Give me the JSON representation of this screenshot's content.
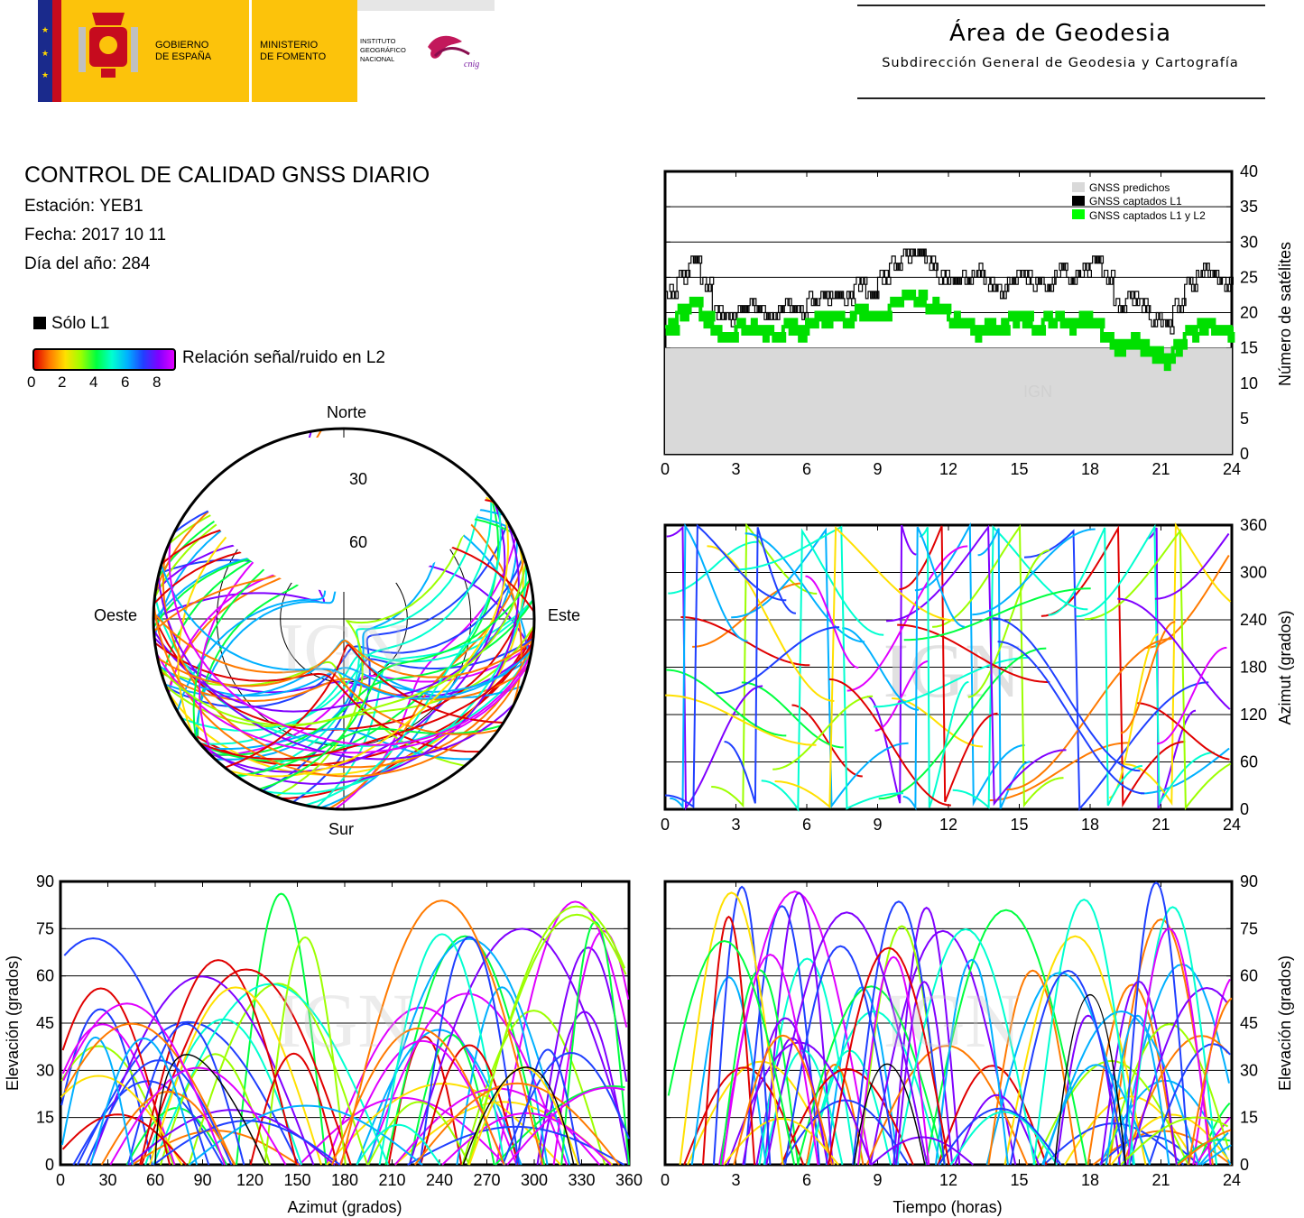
{
  "header": {
    "gov1": "GOBIERNO",
    "gov2": "DE ESPAÑA",
    "min1": "MINISTERIO",
    "min2": "DE FOMENTO",
    "ign1": "INSTITUTO",
    "ign2": "GEOGRÁFICO",
    "ign3": "NACIONAL",
    "cnig": "cnig",
    "area_title": "Área de Geodesia",
    "area_subtitle": "Subdirección General de Geodesia y Cartografía"
  },
  "report": {
    "title": "CONTROL DE CALIDAD GNSS DIARIO",
    "station": "Estación: YEB1",
    "date": "Fecha: 2017 10 11",
    "doy": "Día del año: 284"
  },
  "legend": {
    "solo_l1": "Sólo L1",
    "snr_label": "Relación señal/ruido en L2",
    "snr_ticks": [
      "0",
      "2",
      "4",
      "6",
      "8"
    ]
  },
  "watermark": "IGN",
  "colors": {
    "predicted": "#d9d9d9",
    "l1": "#000000",
    "l1l2": "#00ff00",
    "snr_scale": [
      "#e00000",
      "#ff7a00",
      "#ffe000",
      "#9cff00",
      "#00ff40",
      "#00ffd0",
      "#00b0ff",
      "#2040ff",
      "#8000ff",
      "#e000ff"
    ]
  },
  "chart_data": [
    {
      "type": "area",
      "id": "satellites",
      "ylabel": "Número de satélites",
      "xlim": [
        0,
        24
      ],
      "ylim": [
        0,
        40
      ],
      "x_ticks": [
        "0",
        "3",
        "6",
        "9",
        "12",
        "15",
        "18",
        "21",
        "24"
      ],
      "y_ticks": [
        "0",
        "5",
        "10",
        "15",
        "20",
        "25",
        "30",
        "35",
        "40"
      ],
      "grid": true,
      "legend_position": "top-right",
      "legend": [
        "GNSS predichos",
        "GNSS captados L1",
        "GNSS captados L1 y L2"
      ],
      "x": [
        0,
        0.5,
        1,
        1.5,
        2,
        2.5,
        3,
        3.5,
        4,
        4.5,
        5,
        5.5,
        6,
        6.5,
        7,
        7.5,
        8,
        8.5,
        9,
        9.5,
        10,
        10.5,
        11,
        11.5,
        12,
        12.5,
        13,
        13.5,
        14,
        14.5,
        15,
        15.5,
        16,
        16.5,
        17,
        17.5,
        18,
        18.5,
        19,
        19.5,
        20,
        20.5,
        21,
        21.5,
        22,
        22.5,
        23,
        23.5,
        24
      ],
      "series": [
        {
          "name": "GNSS predichos",
          "values": [
            15,
            15,
            15,
            15,
            15,
            15,
            15,
            15,
            15,
            15,
            15,
            15,
            15,
            15,
            15,
            15,
            15,
            15,
            15,
            15,
            15,
            15,
            15,
            15,
            15,
            15,
            15,
            15,
            15,
            15,
            15,
            15,
            15,
            15,
            15,
            15,
            15,
            15,
            15,
            15,
            15,
            15,
            15,
            15,
            15,
            15,
            15,
            15,
            15
          ]
        },
        {
          "name": "GNSS captados L1",
          "values": [
            23,
            25,
            27,
            24,
            20,
            19,
            20,
            21,
            20,
            20,
            21,
            20,
            22,
            22,
            23,
            22,
            24,
            22,
            25,
            27,
            28,
            29,
            27,
            25,
            24,
            25,
            26,
            24,
            23,
            25,
            25,
            24,
            24,
            26,
            25,
            26,
            27,
            25,
            21,
            22,
            21,
            19,
            18,
            21,
            24,
            26,
            25,
            24,
            24
          ]
        },
        {
          "name": "GNSS captados L1 y L2",
          "values": [
            18,
            20,
            21,
            19,
            17,
            17,
            18,
            18,
            17,
            17,
            18,
            17,
            19,
            19,
            20,
            19,
            20,
            19,
            20,
            21,
            22,
            22,
            21,
            20,
            19,
            18,
            17,
            18,
            18,
            19,
            19,
            18,
            19,
            19,
            18,
            19,
            18,
            16,
            15,
            16,
            15,
            14,
            13,
            15,
            17,
            18,
            18,
            17,
            18
          ]
        }
      ]
    },
    {
      "type": "scatter",
      "id": "skyplot",
      "title": "",
      "cardinal_labels": {
        "north": "Norte",
        "south": "Sur",
        "east": "Este",
        "west": "Oeste"
      },
      "ring_labels": [
        "30",
        "60"
      ]
    },
    {
      "type": "scatter",
      "id": "azimuth-time",
      "ylabel": "Azimut (grados)",
      "xlim": [
        0,
        24
      ],
      "ylim": [
        0,
        360
      ],
      "x_ticks": [
        "0",
        "3",
        "6",
        "9",
        "12",
        "15",
        "18",
        "21",
        "24"
      ],
      "y_ticks": [
        "0",
        "60",
        "120",
        "180",
        "240",
        "300",
        "360"
      ],
      "grid": true
    },
    {
      "type": "scatter",
      "id": "elevation-azimuth",
      "xlabel": "Azimut (grados)",
      "ylabel": "Elevación (grados)",
      "xlim": [
        0,
        360
      ],
      "ylim": [
        0,
        90
      ],
      "x_ticks": [
        "0",
        "30",
        "60",
        "90",
        "120",
        "150",
        "180",
        "210",
        "240",
        "270",
        "300",
        "330",
        "360"
      ],
      "y_ticks": [
        "0",
        "15",
        "30",
        "45",
        "60",
        "75",
        "90"
      ],
      "grid": true
    },
    {
      "type": "scatter",
      "id": "elevation-time",
      "xlabel": "Tiempo (horas)",
      "ylabel": "Elevación (grados)",
      "xlim": [
        0,
        24
      ],
      "ylim": [
        0,
        90
      ],
      "x_ticks": [
        "0",
        "3",
        "6",
        "9",
        "12",
        "15",
        "18",
        "21",
        "24"
      ],
      "y_ticks": [
        "0",
        "15",
        "30",
        "45",
        "60",
        "75",
        "90"
      ],
      "grid": true
    }
  ]
}
